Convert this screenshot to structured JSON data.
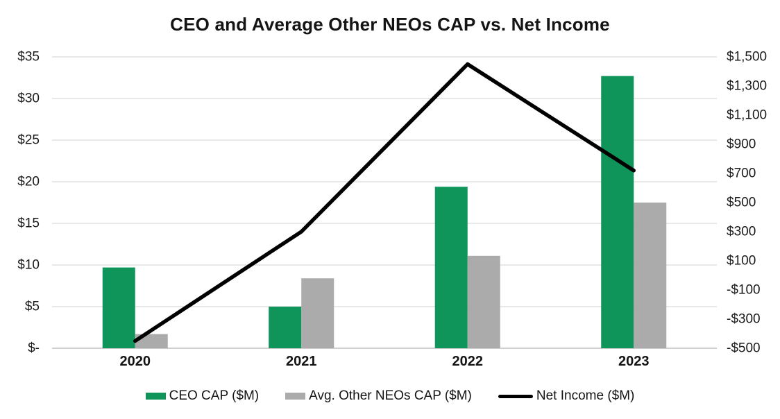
{
  "title": "CEO and Average Other NEOs CAP vs. Net Income",
  "chart_data": {
    "type": "bar",
    "subtype": "bar-line-combo",
    "categories": [
      "2020",
      "2021",
      "2022",
      "2023"
    ],
    "series": [
      {
        "name": "CEO CAP ($M)",
        "type": "bar",
        "axis": "left",
        "color": "#0F945A",
        "values": [
          9.7,
          5.0,
          19.4,
          32.7
        ]
      },
      {
        "name": "Avg. Other NEOs CAP ($M)",
        "type": "bar",
        "axis": "left",
        "color": "#ABABAB",
        "values": [
          1.7,
          8.4,
          11.1,
          17.5
        ]
      },
      {
        "name": "Net Income ($M)",
        "type": "line",
        "axis": "right",
        "color": "#000000",
        "values": [
          -450,
          300,
          1450,
          720
        ]
      }
    ],
    "left_axis": {
      "min": 0,
      "max": 35,
      "step": 5,
      "tick_labels": [
        "$35",
        "$30",
        "$25",
        "$20",
        "$15",
        "$10",
        "$5",
        "$-"
      ]
    },
    "right_axis": {
      "min": -500,
      "max": 1500,
      "step": 200,
      "tick_labels": [
        "$1,500",
        "$1,300",
        "$1,100",
        "$900",
        "$700",
        "$500",
        "$300",
        "$100",
        "-$100",
        "-$300",
        "-$500"
      ]
    },
    "grid": "horizontal",
    "legend_position": "bottom"
  },
  "colors": {
    "gridline": "#D9D9D9",
    "axis_line": "#BFBFBF",
    "tick_text": "#1A1A1A",
    "title_text": "#141414",
    "background": "#FFFFFF"
  }
}
